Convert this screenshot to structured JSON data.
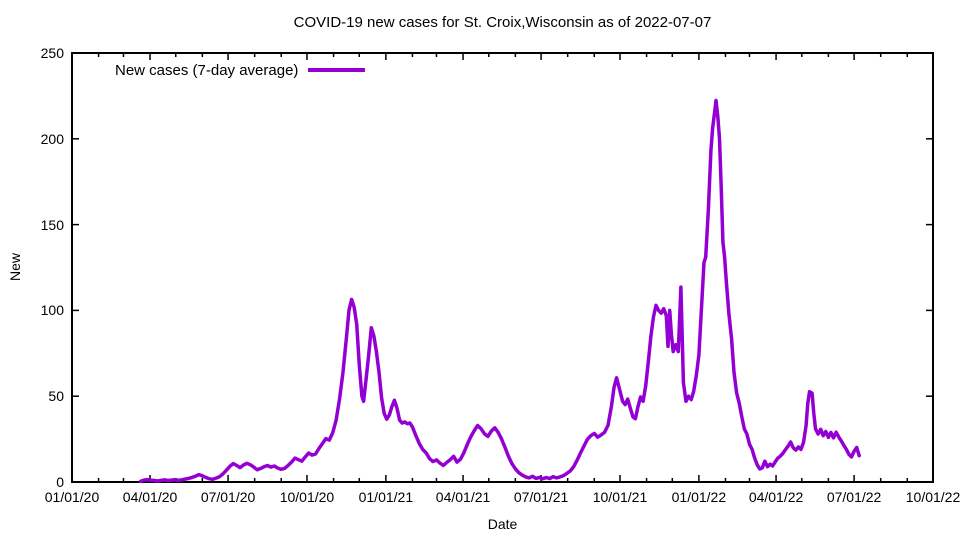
{
  "colors": {
    "line": "#9400d3",
    "axis": "#000000",
    "text": "#000000",
    "background": "#ffffff"
  },
  "chart_data": {
    "type": "line",
    "title": "COVID-19 new cases for St. Croix,Wisconsin as of 2022-07-07",
    "xlabel": "Date",
    "ylabel": "New",
    "xlim": [
      "2020-01-01",
      "2022-10-01"
    ],
    "ylim": [
      0,
      250
    ],
    "grid": false,
    "legend_position": "top-left inside",
    "x_minor_ticks": "monthly",
    "x_ticks": [
      {
        "date": "2020-01-01",
        "label": "01/01/20"
      },
      {
        "date": "2020-04-01",
        "label": "04/01/20"
      },
      {
        "date": "2020-07-01",
        "label": "07/01/20"
      },
      {
        "date": "2020-10-01",
        "label": "10/01/20"
      },
      {
        "date": "2021-01-01",
        "label": "01/01/21"
      },
      {
        "date": "2021-04-01",
        "label": "04/01/21"
      },
      {
        "date": "2021-07-01",
        "label": "07/01/21"
      },
      {
        "date": "2021-10-01",
        "label": "10/01/21"
      },
      {
        "date": "2022-01-01",
        "label": "01/01/22"
      },
      {
        "date": "2022-04-01",
        "label": "04/01/22"
      },
      {
        "date": "2022-07-01",
        "label": "07/01/22"
      },
      {
        "date": "2022-10-01",
        "label": "10/01/22"
      }
    ],
    "y_ticks": [
      0,
      50,
      100,
      150,
      200,
      250
    ],
    "series": [
      {
        "name": "New cases (7-day average)",
        "color": "#9400d3",
        "points": [
          [
            "2020-03-21",
            0.4
          ],
          [
            "2020-03-25",
            1.1
          ],
          [
            "2020-03-29",
            1.4
          ],
          [
            "2020-04-02",
            1.1
          ],
          [
            "2020-04-06",
            0.9
          ],
          [
            "2020-04-10",
            0.6
          ],
          [
            "2020-04-14",
            1.0
          ],
          [
            "2020-04-18",
            1.3
          ],
          [
            "2020-04-22",
            0.9
          ],
          [
            "2020-04-26",
            1.1
          ],
          [
            "2020-04-30",
            1.4
          ],
          [
            "2020-05-04",
            1.0
          ],
          [
            "2020-05-08",
            1.3
          ],
          [
            "2020-05-12",
            1.7
          ],
          [
            "2020-05-16",
            2.1
          ],
          [
            "2020-05-20",
            2.7
          ],
          [
            "2020-05-24",
            3.4
          ],
          [
            "2020-05-28",
            4.3
          ],
          [
            "2020-06-01",
            3.6
          ],
          [
            "2020-06-05",
            2.7
          ],
          [
            "2020-06-09",
            1.9
          ],
          [
            "2020-06-13",
            1.6
          ],
          [
            "2020-06-17",
            2.3
          ],
          [
            "2020-06-21",
            3.1
          ],
          [
            "2020-06-25",
            4.7
          ],
          [
            "2020-06-29",
            6.9
          ],
          [
            "2020-07-03",
            9.1
          ],
          [
            "2020-07-07",
            10.7
          ],
          [
            "2020-07-11",
            9.6
          ],
          [
            "2020-07-15",
            8.4
          ],
          [
            "2020-07-19",
            9.9
          ],
          [
            "2020-07-23",
            10.9
          ],
          [
            "2020-07-27",
            10.0
          ],
          [
            "2020-07-31",
            8.7
          ],
          [
            "2020-08-04",
            7.1
          ],
          [
            "2020-08-08",
            7.9
          ],
          [
            "2020-08-12",
            8.9
          ],
          [
            "2020-08-16",
            9.6
          ],
          [
            "2020-08-20",
            8.7
          ],
          [
            "2020-08-24",
            9.3
          ],
          [
            "2020-08-28",
            8.1
          ],
          [
            "2020-09-01",
            7.4
          ],
          [
            "2020-09-05",
            8.0
          ],
          [
            "2020-09-09",
            9.7
          ],
          [
            "2020-09-13",
            11.6
          ],
          [
            "2020-09-17",
            13.9
          ],
          [
            "2020-09-21",
            13.0
          ],
          [
            "2020-09-25",
            12.1
          ],
          [
            "2020-09-29",
            14.6
          ],
          [
            "2020-10-03",
            16.9
          ],
          [
            "2020-10-07",
            15.7
          ],
          [
            "2020-10-11",
            16.3
          ],
          [
            "2020-10-15",
            19.6
          ],
          [
            "2020-10-19",
            22.4
          ],
          [
            "2020-10-23",
            25.3
          ],
          [
            "2020-10-27",
            24.4
          ],
          [
            "2020-10-31",
            28.7
          ],
          [
            "2020-11-04",
            36.0
          ],
          [
            "2020-11-08",
            48.6
          ],
          [
            "2020-11-12",
            64.0
          ],
          [
            "2020-11-16",
            84.0
          ],
          [
            "2020-11-19",
            100.1
          ],
          [
            "2020-11-22",
            106.4
          ],
          [
            "2020-11-25",
            102.0
          ],
          [
            "2020-11-28",
            92.0
          ],
          [
            "2020-12-01",
            68.0
          ],
          [
            "2020-12-04",
            50.0
          ],
          [
            "2020-12-06",
            47.0
          ],
          [
            "2020-12-09",
            60.0
          ],
          [
            "2020-12-12",
            74.0
          ],
          [
            "2020-12-15",
            89.9
          ],
          [
            "2020-12-18",
            85.0
          ],
          [
            "2020-12-21",
            76.0
          ],
          [
            "2020-12-24",
            64.0
          ],
          [
            "2020-12-27",
            49.0
          ],
          [
            "2020-12-30",
            40.0
          ],
          [
            "2021-01-02",
            36.6
          ],
          [
            "2021-01-05",
            39.0
          ],
          [
            "2021-01-08",
            44.0
          ],
          [
            "2021-01-11",
            47.6
          ],
          [
            "2021-01-14",
            43.0
          ],
          [
            "2021-01-17",
            36.1
          ],
          [
            "2021-01-20",
            34.3
          ],
          [
            "2021-01-23",
            35.0
          ],
          [
            "2021-01-26",
            34.0
          ],
          [
            "2021-01-29",
            34.4
          ],
          [
            "2021-02-01",
            32.0
          ],
          [
            "2021-02-05",
            27.0
          ],
          [
            "2021-02-09",
            22.4
          ],
          [
            "2021-02-13",
            19.0
          ],
          [
            "2021-02-17",
            16.9
          ],
          [
            "2021-02-21",
            13.6
          ],
          [
            "2021-02-25",
            11.9
          ],
          [
            "2021-03-01",
            12.9
          ],
          [
            "2021-03-05",
            11.0
          ],
          [
            "2021-03-09",
            9.7
          ],
          [
            "2021-03-13",
            11.4
          ],
          [
            "2021-03-17",
            13.0
          ],
          [
            "2021-03-21",
            15.0
          ],
          [
            "2021-03-25",
            11.6
          ],
          [
            "2021-03-29",
            13.3
          ],
          [
            "2021-04-02",
            17.1
          ],
          [
            "2021-04-06",
            21.9
          ],
          [
            "2021-04-10",
            26.4
          ],
          [
            "2021-04-14",
            29.9
          ],
          [
            "2021-04-18",
            32.9
          ],
          [
            "2021-04-22",
            31.0
          ],
          [
            "2021-04-26",
            28.1
          ],
          [
            "2021-04-30",
            26.6
          ],
          [
            "2021-05-04",
            29.7
          ],
          [
            "2021-05-08",
            31.6
          ],
          [
            "2021-05-12",
            28.9
          ],
          [
            "2021-05-16",
            25.0
          ],
          [
            "2021-05-20",
            20.0
          ],
          [
            "2021-05-24",
            14.9
          ],
          [
            "2021-05-28",
            10.7
          ],
          [
            "2021-06-01",
            7.7
          ],
          [
            "2021-06-05",
            5.4
          ],
          [
            "2021-06-09",
            4.0
          ],
          [
            "2021-06-13",
            3.0
          ],
          [
            "2021-06-17",
            2.4
          ],
          [
            "2021-06-21",
            3.3
          ],
          [
            "2021-06-25",
            2.1
          ],
          [
            "2021-06-29",
            2.7
          ],
          [
            "2021-07-03",
            1.9
          ],
          [
            "2021-07-07",
            2.6
          ],
          [
            "2021-07-11",
            2.0
          ],
          [
            "2021-07-15",
            3.1
          ],
          [
            "2021-07-19",
            2.4
          ],
          [
            "2021-07-23",
            3.0
          ],
          [
            "2021-07-27",
            3.7
          ],
          [
            "2021-07-31",
            5.0
          ],
          [
            "2021-08-04",
            6.4
          ],
          [
            "2021-08-08",
            9.0
          ],
          [
            "2021-08-12",
            12.7
          ],
          [
            "2021-08-16",
            16.9
          ],
          [
            "2021-08-20",
            21.0
          ],
          [
            "2021-08-24",
            24.9
          ],
          [
            "2021-08-28",
            27.0
          ],
          [
            "2021-09-01",
            28.3
          ],
          [
            "2021-09-05",
            26.1
          ],
          [
            "2021-09-09",
            27.4
          ],
          [
            "2021-09-13",
            29.0
          ],
          [
            "2021-09-17",
            33.0
          ],
          [
            "2021-09-21",
            44.0
          ],
          [
            "2021-09-24",
            55.0
          ],
          [
            "2021-09-27",
            60.7
          ],
          [
            "2021-10-01",
            53.0
          ],
          [
            "2021-10-04",
            47.0
          ],
          [
            "2021-10-07",
            45.1
          ],
          [
            "2021-10-10",
            48.3
          ],
          [
            "2021-10-13",
            43.0
          ],
          [
            "2021-10-16",
            38.0
          ],
          [
            "2021-10-19",
            36.9
          ],
          [
            "2021-10-22",
            44.0
          ],
          [
            "2021-10-25",
            49.6
          ],
          [
            "2021-10-28",
            47.0
          ],
          [
            "2021-10-31",
            56.0
          ],
          [
            "2021-11-03",
            70.0
          ],
          [
            "2021-11-06",
            85.0
          ],
          [
            "2021-11-09",
            96.0
          ],
          [
            "2021-11-12",
            103.0
          ],
          [
            "2021-11-15",
            100.0
          ],
          [
            "2021-11-18",
            98.4
          ],
          [
            "2021-11-21",
            101.0
          ],
          [
            "2021-11-24",
            97.0
          ],
          [
            "2021-11-26",
            79.0
          ],
          [
            "2021-11-28",
            100.0
          ],
          [
            "2021-11-30",
            86.0
          ],
          [
            "2021-12-02",
            76.0
          ],
          [
            "2021-12-05",
            80.0
          ],
          [
            "2021-12-08",
            76.0
          ],
          [
            "2021-12-11",
            113.6
          ],
          [
            "2021-12-14",
            58.0
          ],
          [
            "2021-12-17",
            47.0
          ],
          [
            "2021-12-20",
            50.0
          ],
          [
            "2021-12-23",
            48.0
          ],
          [
            "2021-12-26",
            53.0
          ],
          [
            "2021-12-29",
            62.0
          ],
          [
            "2022-01-01",
            74.0
          ],
          [
            "2022-01-05",
            110.0
          ],
          [
            "2022-01-07",
            128.0
          ],
          [
            "2022-01-09",
            131.0
          ],
          [
            "2022-01-12",
            158.0
          ],
          [
            "2022-01-15",
            193.0
          ],
          [
            "2022-01-17",
            206.0
          ],
          [
            "2022-01-19",
            214.0
          ],
          [
            "2022-01-21",
            222.3
          ],
          [
            "2022-01-23",
            213.0
          ],
          [
            "2022-01-25",
            200.0
          ],
          [
            "2022-01-27",
            172.0
          ],
          [
            "2022-01-29",
            140.0
          ],
          [
            "2022-01-31",
            131.0
          ],
          [
            "2022-02-02",
            117.0
          ],
          [
            "2022-02-05",
            98.0
          ],
          [
            "2022-02-08",
            84.0
          ],
          [
            "2022-02-11",
            64.0
          ],
          [
            "2022-02-14",
            52.0
          ],
          [
            "2022-02-17",
            46.0
          ],
          [
            "2022-02-20",
            38.0
          ],
          [
            "2022-02-23",
            31.0
          ],
          [
            "2022-02-26",
            28.0
          ],
          [
            "2022-03-01",
            22.0
          ],
          [
            "2022-03-04",
            19.0
          ],
          [
            "2022-03-07",
            14.0
          ],
          [
            "2022-03-10",
            10.0
          ],
          [
            "2022-03-13",
            7.6
          ],
          [
            "2022-03-16",
            8.3
          ],
          [
            "2022-03-19",
            12.1
          ],
          [
            "2022-03-22",
            8.9
          ],
          [
            "2022-03-25",
            10.4
          ],
          [
            "2022-03-28",
            9.3
          ],
          [
            "2022-03-31",
            11.7
          ],
          [
            "2022-04-03",
            13.9
          ],
          [
            "2022-04-06",
            15.1
          ],
          [
            "2022-04-09",
            16.7
          ],
          [
            "2022-04-12",
            18.9
          ],
          [
            "2022-04-15",
            20.9
          ],
          [
            "2022-04-18",
            23.3
          ],
          [
            "2022-04-21",
            20.0
          ],
          [
            "2022-04-24",
            18.6
          ],
          [
            "2022-04-27",
            20.4
          ],
          [
            "2022-04-30",
            19.0
          ],
          [
            "2022-05-03",
            23.0
          ],
          [
            "2022-05-06",
            33.0
          ],
          [
            "2022-05-08",
            46.0
          ],
          [
            "2022-05-10",
            52.6
          ],
          [
            "2022-05-13",
            51.7
          ],
          [
            "2022-05-15",
            40.0
          ],
          [
            "2022-05-17",
            31.0
          ],
          [
            "2022-05-20",
            28.0
          ],
          [
            "2022-05-23",
            30.7
          ],
          [
            "2022-05-26",
            27.0
          ],
          [
            "2022-05-29",
            29.4
          ],
          [
            "2022-06-01",
            26.0
          ],
          [
            "2022-06-04",
            28.9
          ],
          [
            "2022-06-07",
            25.7
          ],
          [
            "2022-06-10",
            29.0
          ],
          [
            "2022-06-13",
            26.3
          ],
          [
            "2022-06-16",
            24.0
          ],
          [
            "2022-06-19",
            21.4
          ],
          [
            "2022-06-22",
            19.0
          ],
          [
            "2022-06-25",
            16.0
          ],
          [
            "2022-06-28",
            14.6
          ],
          [
            "2022-07-01",
            17.9
          ],
          [
            "2022-07-04",
            20.1
          ],
          [
            "2022-07-07",
            15.3
          ]
        ]
      }
    ]
  }
}
